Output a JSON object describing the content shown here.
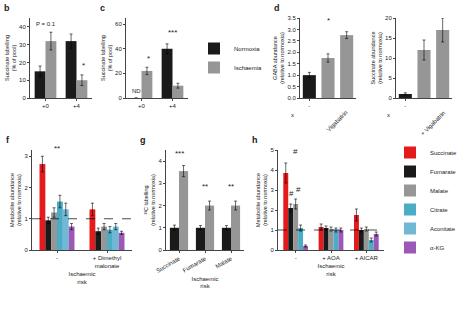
{
  "chart_data": [
    {
      "type": "bar",
      "title": "b",
      "categories": [
        "+0",
        "+4"
      ],
      "series": [
        {
          "color": "#1a1a1a",
          "values": [
            15,
            32
          ],
          "errors": [
            3,
            4
          ]
        },
        {
          "color": "#969696",
          "values": [
            32,
            10
          ],
          "errors": [
            5,
            3
          ]
        }
      ],
      "ylabel": "Succinate labelling (% of pool)",
      "ylim": [
        0,
        45
      ],
      "yticks": [
        0,
        10,
        20,
        30,
        40
      ],
      "grid": false,
      "annotations": [
        {
          "text": "P = 0.1",
          "x": 0,
          "y": 39
        },
        {
          "text": "*",
          "x": 1.225,
          "y": 14.5
        }
      ]
    },
    {
      "type": "bar",
      "title": "c",
      "categories": [
        "+0",
        "+4"
      ],
      "series": [
        {
          "name": "Normoxia",
          "color": "#1a1a1a",
          "values": [
            0,
            40
          ],
          "errors": [
            0,
            4
          ]
        },
        {
          "name": "Ischaemia",
          "color": "#969696",
          "values": [
            22,
            10
          ],
          "errors": [
            3,
            2
          ]
        }
      ],
      "ylabel": "Succinate labelling (% of pool)",
      "ylim": [
        0,
        65
      ],
      "yticks": [
        0,
        20,
        40,
        60
      ],
      "grid": false,
      "annotations": [
        {
          "text": "ND",
          "x": -0.175,
          "y": 2
        },
        {
          "text": "*",
          "x": 0.225,
          "y": 26.5
        },
        {
          "text": "***",
          "x": 1,
          "y": 48
        }
      ]
    },
    {
      "type": "bar",
      "title": "d",
      "categories": [
        "-",
        null,
        null
      ],
      "values": [
        1.0,
        1.75,
        2.75
      ],
      "errors": [
        0.12,
        0.18,
        0.15
      ],
      "colors": [
        "#1a1a1a",
        "#969696",
        "#969696"
      ],
      "ylabel": "GABA abundance\n(relative to normoxia)",
      "ylim": [
        0,
        3.5
      ],
      "yticks": [
        {
          "value": 0,
          "label": "0.0"
        },
        0.5,
        {
          "value": 1,
          "label": "1.0"
        },
        1.5,
        {
          "value": 2,
          "label": "2.0"
        },
        2.5,
        {
          "value": 3,
          "label": "3.0"
        },
        3.5
      ],
      "grid": false,
      "annotations": [
        {
          "text": "*",
          "x": 1,
          "y": 3.1
        },
        {
          "text": "Vigabatrin",
          "x": 1.5
        },
        {
          "text": "x"
        }
      ]
    },
    {
      "type": "bar",
      "categories": [
        "-",
        null,
        null
      ],
      "values": [
        1.0,
        12.0,
        17.0
      ],
      "errors": [
        0.3,
        2.5,
        3.0
      ],
      "colors": [
        "#1a1a1a",
        "#969696",
        "#969696"
      ],
      "ylabel": "Succinate abundance\n(relative to normoxia)",
      "ylim": [
        0,
        20
      ],
      "yticks": [
        0,
        5,
        10,
        15,
        20
      ],
      "grid": false,
      "annotations": [
        {
          "text": "+ Vigabatrin",
          "x": 1.5
        },
        {
          "text": "x"
        }
      ]
    },
    {
      "type": "bar",
      "title": "f",
      "categories": [
        "-",
        "+ Dimethyl\nmalonate"
      ],
      "series": [
        {
          "name": "Succinate",
          "color": "#e41a1c",
          "values": [
            2.75,
            1.3
          ],
          "errors": [
            0.25,
            0.2
          ]
        },
        {
          "name": "Fumarate",
          "color": "#1a1a1a",
          "values": [
            0.95,
            0.6
          ],
          "errors": [
            0.1,
            0.1
          ]
        },
        {
          "name": "Malate",
          "color": "#969696",
          "values": [
            1.2,
            0.75
          ],
          "errors": [
            0.15,
            0.1
          ]
        },
        {
          "name": "Citrate",
          "color": "#4bacc6",
          "values": [
            1.55,
            0.65
          ],
          "errors": [
            0.2,
            0.1
          ]
        },
        {
          "name": "Aconitate",
          "color": "#70b8d4",
          "values": [
            1.3,
            0.75
          ],
          "errors": [
            0.2,
            0.1
          ]
        },
        {
          "name": "α-KG",
          "color": "#9b59b6",
          "values": [
            0.75,
            0.55
          ],
          "errors": [
            0.1,
            0.05
          ]
        }
      ],
      "hline": 1.0,
      "xlabel": "Ischaemic\nrisk",
      "ylabel": "Metabolite abundance (relative to normoxia)",
      "ylim": [
        0,
        3.2
      ],
      "yticks": [
        0,
        1,
        2,
        3
      ],
      "grid": false,
      "annotations": [
        {
          "text": "**",
          "x": 0,
          "y": 3.05
        }
      ]
    },
    {
      "type": "bar",
      "title": "g",
      "categories": [
        "Succinate",
        "Fumarate",
        "Malate"
      ],
      "series": [
        {
          "name": "Normoxia",
          "color": "#1a1a1a",
          "values": [
            1.0,
            1.0,
            1.0
          ],
          "errors": [
            0.12,
            0.1,
            0.1
          ]
        },
        {
          "name": "Ischaemia",
          "color": "#969696",
          "values": [
            3.55,
            2.0,
            2.0
          ],
          "errors": [
            0.25,
            0.2,
            0.2
          ]
        }
      ],
      "xlabel": "Ischaemic\nrisk",
      "ylabel": "¹³C labelling (relative to normoxia)",
      "ylim": [
        0,
        4.5
      ],
      "yticks": [
        0,
        1,
        2,
        3,
        4
      ],
      "grid": false,
      "annotations": [
        {
          "text": "***",
          "x": 0,
          "y": 4.05
        },
        {
          "text": "**",
          "x": 1,
          "y": 2.55
        },
        {
          "text": "**",
          "x": 2,
          "y": 2.55
        }
      ]
    },
    {
      "type": "bar",
      "title": "h",
      "categories": [
        "-",
        "+ AOA",
        "+ AICAR"
      ],
      "series": [
        {
          "name": "Succinate",
          "color": "#e41a1c",
          "values": [
            3.85,
            1.15,
            1.75
          ],
          "errors": [
            0.5,
            0.15,
            0.3
          ]
        },
        {
          "name": "Fumarate",
          "color": "#1a1a1a",
          "values": [
            2.1,
            1.1,
            1.0
          ],
          "errors": [
            0.2,
            0.1,
            0.1
          ]
        },
        {
          "name": "Malate",
          "color": "#969696",
          "values": [
            2.3,
            1.05,
            1.05
          ],
          "errors": [
            0.25,
            0.1,
            0.1
          ]
        },
        {
          "name": "Citrate",
          "color": "#4bacc6",
          "values": [
            1.1,
            1.0,
            0.5
          ],
          "errors": [
            0.15,
            0.1,
            0.1
          ]
        },
        {
          "name": "α-KG",
          "color": "#9b59b6",
          "values": [
            0.2,
            1.0,
            0.8
          ],
          "errors": [
            0.05,
            0.1,
            0.1
          ]
        }
      ],
      "hline": 1.0,
      "xlabel": "Ischaemic\nrisk",
      "ylabel": "Metabolite abundance (relative to normoxia)",
      "ylim": [
        0,
        5.0
      ],
      "yticks": [
        0,
        1,
        2,
        3,
        4,
        5
      ],
      "grid": false,
      "annotations": [
        {
          "text": "#",
          "x": 0,
          "y": 4.6
        },
        {
          "text": "#",
          "x": -0.12,
          "y": 2.5
        },
        {
          "text": "#",
          "x": 0.07,
          "y": 2.7
        }
      ]
    }
  ]
}
